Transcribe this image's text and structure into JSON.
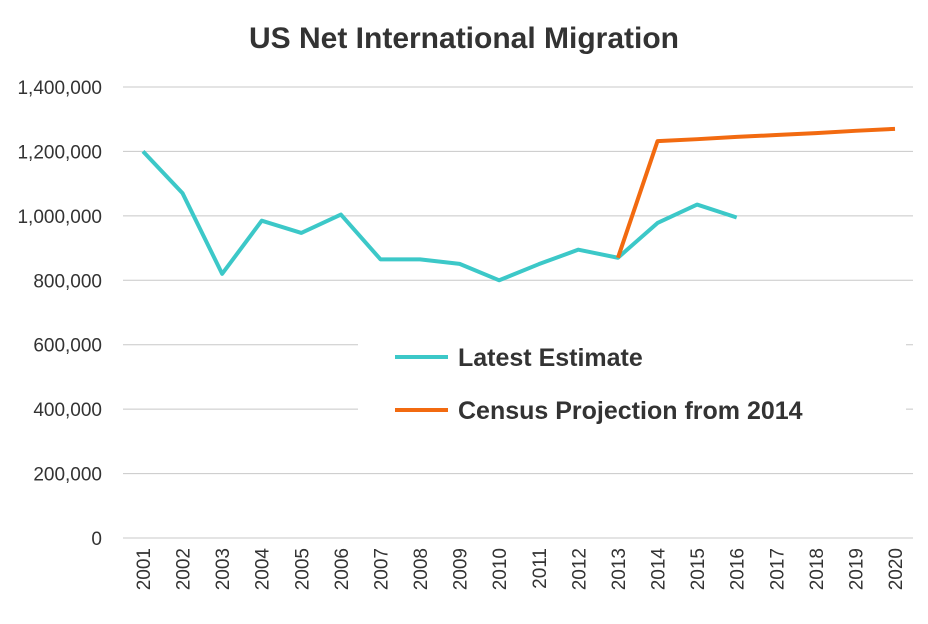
{
  "chart_data": {
    "type": "line",
    "title": "US Net International Migration",
    "xlabel": "",
    "ylabel": "",
    "x": [
      "2001",
      "2002",
      "2003",
      "2004",
      "2005",
      "2006",
      "2007",
      "2008",
      "2009",
      "2010",
      "2011",
      "2012",
      "2013",
      "2014",
      "2015",
      "2016",
      "2017",
      "2018",
      "2019",
      "2020"
    ],
    "ylim": [
      0,
      1400000
    ],
    "yticks": [
      "0",
      "200,000",
      "400,000",
      "600,000",
      "800,000",
      "1,000,000",
      "1,200,000",
      "1,400,000"
    ],
    "grid": true,
    "legend_position": "center-right",
    "series": [
      {
        "name": "Latest Estimate",
        "color": "#3cc8c8",
        "values": [
          1200000,
          1070000,
          820000,
          985000,
          947000,
          1004000,
          865000,
          865000,
          851000,
          800000,
          850000,
          895000,
          870000,
          978000,
          1035000,
          995000,
          null,
          null,
          null,
          null
        ]
      },
      {
        "name": "Census Projection from 2014",
        "color": "#f26a10",
        "values": [
          null,
          null,
          null,
          null,
          null,
          null,
          null,
          null,
          null,
          null,
          null,
          null,
          870000,
          1232000,
          1238000,
          1245000,
          1251000,
          1257000,
          1264000,
          1270000
        ]
      }
    ]
  }
}
